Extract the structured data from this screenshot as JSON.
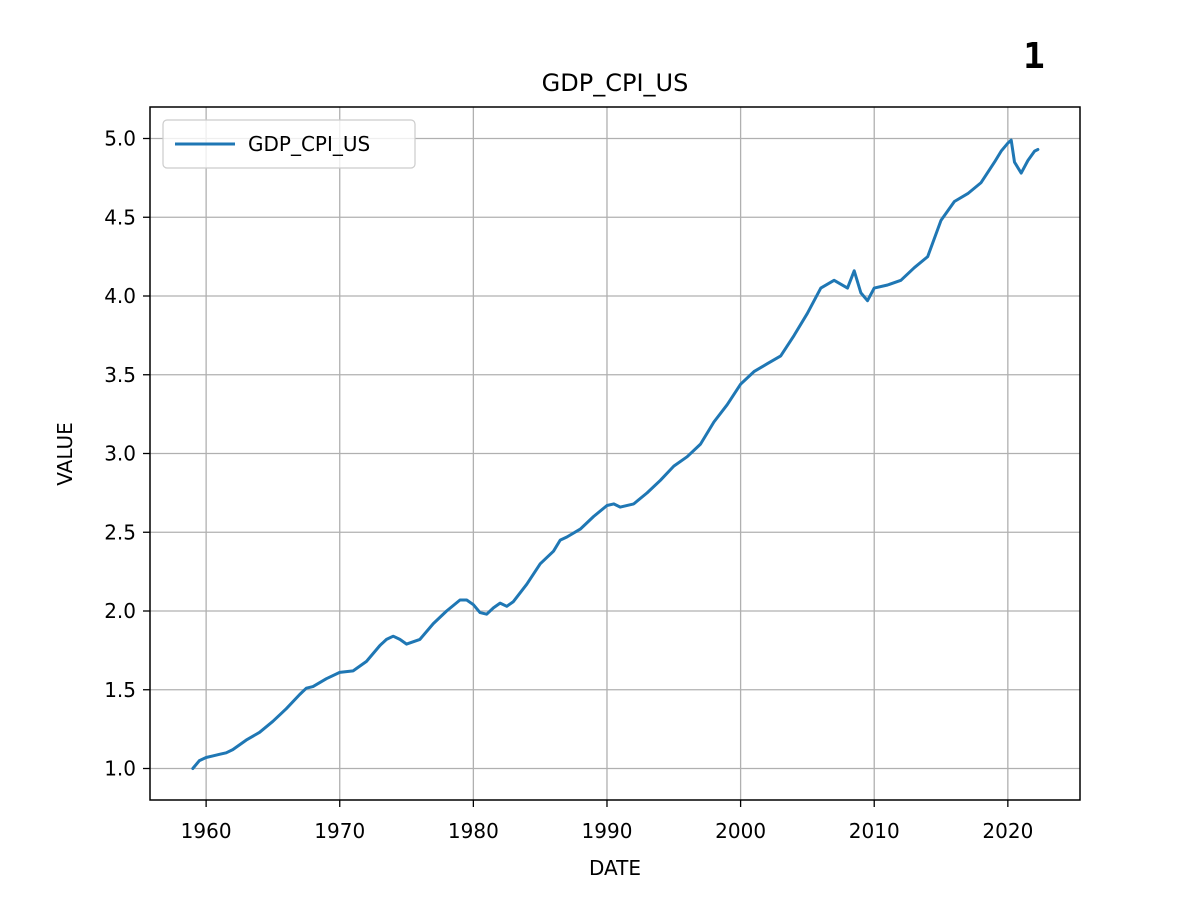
{
  "page_number": "1",
  "chart_data": {
    "type": "line",
    "title": "GDP_CPI_US",
    "xlabel": "DATE",
    "ylabel": "VALUE",
    "xlim": [
      1955.8,
      2025.4
    ],
    "ylim": [
      0.8,
      5.2
    ],
    "xticks": [
      1960,
      1970,
      1980,
      1990,
      2000,
      2010,
      2020
    ],
    "yticks": [
      1.0,
      1.5,
      2.0,
      2.5,
      3.0,
      3.5,
      4.0,
      4.5,
      5.0
    ],
    "xtick_labels": [
      "1960",
      "1970",
      "1980",
      "1990",
      "2000",
      "2010",
      "2020"
    ],
    "ytick_labels": [
      "1.0",
      "1.5",
      "2.0",
      "2.5",
      "3.0",
      "3.5",
      "4.0",
      "4.5",
      "5.0"
    ],
    "grid": true,
    "legend_position": "top-left",
    "series": [
      {
        "name": "GDP_CPI_US",
        "color": "#1f77b4",
        "x": [
          1959.0,
          1959.5,
          1960.0,
          1960.5,
          1961.0,
          1961.5,
          1962.0,
          1963.0,
          1964.0,
          1965.0,
          1966.0,
          1967.0,
          1967.5,
          1968.0,
          1969.0,
          1970.0,
          1971.0,
          1972.0,
          1973.0,
          1973.5,
          1974.0,
          1974.5,
          1975.0,
          1976.0,
          1977.0,
          1978.0,
          1979.0,
          1979.5,
          1980.0,
          1980.5,
          1981.0,
          1981.5,
          1982.0,
          1982.5,
          1983.0,
          1984.0,
          1985.0,
          1986.0,
          1986.5,
          1987.0,
          1988.0,
          1989.0,
          1990.0,
          1990.5,
          1991.0,
          1992.0,
          1993.0,
          1994.0,
          1995.0,
          1996.0,
          1997.0,
          1998.0,
          1999.0,
          2000.0,
          2001.0,
          2002.0,
          2003.0,
          2004.0,
          2005.0,
          2006.0,
          2007.0,
          2008.0,
          2008.5,
          2009.0,
          2009.5,
          2010.0,
          2011.0,
          2012.0,
          2013.0,
          2014.0,
          2015.0,
          2016.0,
          2017.0,
          2018.0,
          2019.0,
          2019.5,
          2020.0,
          2020.25,
          2020.5,
          2021.0,
          2021.5,
          2022.0,
          2022.25
        ],
        "values": [
          1.0,
          1.05,
          1.07,
          1.08,
          1.09,
          1.1,
          1.12,
          1.18,
          1.23,
          1.3,
          1.38,
          1.47,
          1.51,
          1.52,
          1.57,
          1.61,
          1.62,
          1.68,
          1.78,
          1.82,
          1.84,
          1.82,
          1.79,
          1.82,
          1.92,
          2.0,
          2.07,
          2.07,
          2.04,
          1.99,
          1.98,
          2.02,
          2.05,
          2.03,
          2.06,
          2.17,
          2.3,
          2.38,
          2.45,
          2.47,
          2.52,
          2.6,
          2.67,
          2.68,
          2.66,
          2.68,
          2.75,
          2.83,
          2.92,
          2.98,
          3.06,
          3.2,
          3.31,
          3.44,
          3.52,
          3.57,
          3.62,
          3.75,
          3.89,
          4.05,
          4.1,
          4.05,
          4.16,
          4.02,
          3.97,
          4.05,
          4.07,
          4.1,
          4.18,
          4.25,
          4.48,
          4.6,
          4.65,
          4.72,
          4.85,
          4.92,
          4.97,
          4.99,
          4.85,
          4.78,
          4.86,
          4.92,
          4.93
        ]
      }
    ]
  }
}
